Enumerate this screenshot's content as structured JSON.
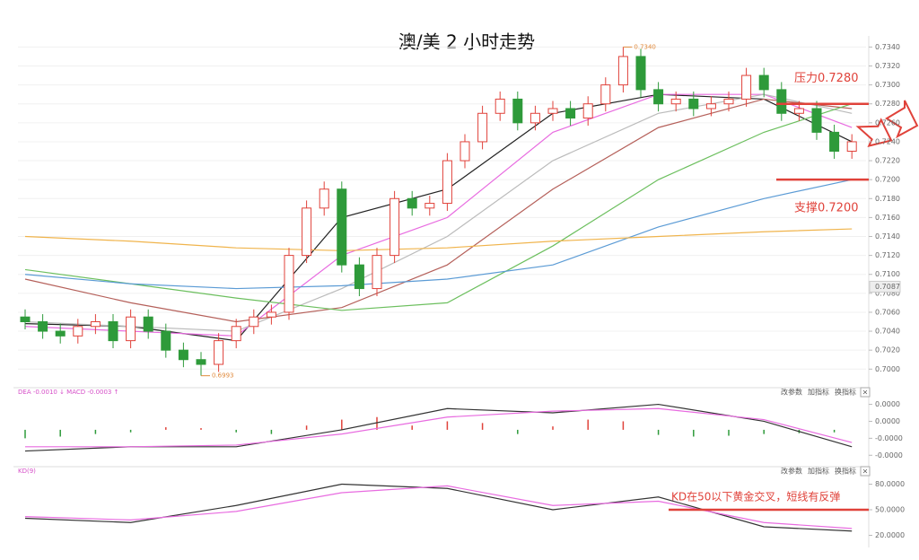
{
  "chart_data": [
    {
      "type": "candlestick",
      "title": "澳/美 2 小时走势",
      "up_color": "#e0423a",
      "down_color": "#2e9a3a",
      "ohlc": [
        [
          0.7055,
          0.7063,
          0.7042,
          0.705
        ],
        [
          0.705,
          0.7058,
          0.7032,
          0.704
        ],
        [
          0.704,
          0.7048,
          0.7027,
          0.7035
        ],
        [
          0.7035,
          0.7053,
          0.7027,
          0.7045
        ],
        [
          0.7045,
          0.7058,
          0.7037,
          0.705
        ],
        [
          0.705,
          0.7058,
          0.7022,
          0.703
        ],
        [
          0.703,
          0.7063,
          0.7022,
          0.7055
        ],
        [
          0.7055,
          0.7063,
          0.7032,
          0.704
        ],
        [
          0.704,
          0.7048,
          0.7012,
          0.702
        ],
        [
          0.702,
          0.7028,
          0.7002,
          0.701
        ],
        [
          0.701,
          0.7018,
          0.6993,
          0.7005
        ],
        [
          0.7005,
          0.7038,
          0.6997,
          0.703
        ],
        [
          0.703,
          0.7053,
          0.7022,
          0.7045
        ],
        [
          0.7045,
          0.7063,
          0.7037,
          0.7055
        ],
        [
          0.7055,
          0.7068,
          0.7047,
          0.706
        ],
        [
          0.706,
          0.7128,
          0.7052,
          0.712
        ],
        [
          0.712,
          0.7178,
          0.7112,
          0.717
        ],
        [
          0.717,
          0.7198,
          0.7162,
          0.719
        ],
        [
          0.719,
          0.7198,
          0.7102,
          0.711
        ],
        [
          0.711,
          0.7118,
          0.7077,
          0.7085
        ],
        [
          0.7085,
          0.7128,
          0.7077,
          0.712
        ],
        [
          0.712,
          0.7188,
          0.7112,
          0.718
        ],
        [
          0.718,
          0.7188,
          0.7162,
          0.717
        ],
        [
          0.717,
          0.7183,
          0.7162,
          0.7175
        ],
        [
          0.7175,
          0.7228,
          0.7167,
          0.722
        ],
        [
          0.722,
          0.7248,
          0.7212,
          0.724
        ],
        [
          0.724,
          0.7278,
          0.7232,
          0.727
        ],
        [
          0.727,
          0.7293,
          0.7262,
          0.7285
        ],
        [
          0.7285,
          0.7293,
          0.7252,
          0.726
        ],
        [
          0.726,
          0.7278,
          0.7252,
          0.727
        ],
        [
          0.727,
          0.7283,
          0.7262,
          0.7275
        ],
        [
          0.7275,
          0.7283,
          0.7257,
          0.7265
        ],
        [
          0.7265,
          0.7288,
          0.7257,
          0.728
        ],
        [
          0.728,
          0.7308,
          0.7272,
          0.73
        ],
        [
          0.73,
          0.734,
          0.7292,
          0.733
        ],
        [
          0.733,
          0.7338,
          0.7287,
          0.7295
        ],
        [
          0.7295,
          0.7303,
          0.7272,
          0.728
        ],
        [
          0.728,
          0.7293,
          0.7272,
          0.7285
        ],
        [
          0.7285,
          0.7293,
          0.7267,
          0.7275
        ],
        [
          0.7275,
          0.7288,
          0.7267,
          0.728
        ],
        [
          0.728,
          0.7293,
          0.7272,
          0.7285
        ],
        [
          0.7285,
          0.7318,
          0.7277,
          0.731
        ],
        [
          0.731,
          0.7318,
          0.7287,
          0.7295
        ],
        [
          0.7295,
          0.7303,
          0.7262,
          0.727
        ],
        [
          0.727,
          0.7283,
          0.7262,
          0.7275
        ],
        [
          0.7275,
          0.7283,
          0.7242,
          0.725
        ],
        [
          0.725,
          0.7258,
          0.7222,
          0.723
        ],
        [
          0.723,
          0.7248,
          0.7222,
          0.724
        ]
      ],
      "x": [
        0,
        6,
        12,
        18,
        24,
        30,
        36,
        42,
        47
      ],
      "series": [
        {
          "color": "#222222",
          "values": [
            0.7048,
            0.7045,
            0.703,
            0.716,
            0.719,
            0.727,
            0.729,
            0.7285,
            0.724
          ]
        },
        {
          "color": "#e86be0",
          "values": [
            0.7045,
            0.704,
            0.7035,
            0.712,
            0.716,
            0.725,
            0.729,
            0.729,
            0.7255
          ]
        },
        {
          "color": "#bbbbbb",
          "values": [
            0.705,
            0.7045,
            0.704,
            0.7085,
            0.714,
            0.722,
            0.727,
            0.729,
            0.727
          ]
        },
        {
          "color": "#b5605a",
          "values": [
            0.7095,
            0.707,
            0.705,
            0.7065,
            0.711,
            0.719,
            0.7255,
            0.7285,
            0.7275
          ]
        },
        {
          "color": "#6cbf5e",
          "values": [
            0.7105,
            0.709,
            0.7075,
            0.7062,
            0.707,
            0.713,
            0.72,
            0.725,
            0.728
          ]
        },
        {
          "color": "#5b9bd5",
          "values": [
            0.71,
            0.709,
            0.7085,
            0.7088,
            0.7095,
            0.711,
            0.715,
            0.718,
            0.72
          ]
        },
        {
          "color": "#f0b44c",
          "values": [
            0.714,
            0.7135,
            0.7128,
            0.7125,
            0.7128,
            0.7135,
            0.714,
            0.7145,
            0.7148
          ]
        }
      ],
      "extremes": [
        {
          "value": 0.734,
          "label": "0.7340"
        },
        {
          "value": 0.6993,
          "label": "0.6993"
        }
      ],
      "levels": [
        {
          "value": 0.728,
          "label": "压力0.7280"
        },
        {
          "value": 0.72,
          "label": "支撑0.7200"
        }
      ],
      "price_marker": 0.7087,
      "ylim": [
        0.6987,
        0.7347
      ],
      "yticks": [
        {
          "value": 0.7,
          "label": "0.7000"
        },
        {
          "value": 0.702,
          "label": "0.7020"
        },
        {
          "value": 0.704,
          "label": "0.7040"
        },
        {
          "value": 0.706,
          "label": "0.7060"
        },
        {
          "value": 0.708,
          "label": "0.7080"
        },
        {
          "value": 0.71,
          "label": "0.7100"
        },
        {
          "value": 0.712,
          "label": "0.7120"
        },
        {
          "value": 0.714,
          "label": "0.7140"
        },
        {
          "value": 0.716,
          "label": "0.7160"
        },
        {
          "value": 0.718,
          "label": "0.7180"
        },
        {
          "value": 0.72,
          "label": "0.7200"
        },
        {
          "value": 0.722,
          "label": "0.7220"
        },
        {
          "value": 0.724,
          "label": "0.7240"
        },
        {
          "value": 0.726,
          "label": "0.7260"
        },
        {
          "value": 0.728,
          "label": "0.7280"
        },
        {
          "value": 0.73,
          "label": "0.7300"
        },
        {
          "value": 0.732,
          "label": "0.7320"
        },
        {
          "value": 0.734,
          "label": "0.7340"
        }
      ],
      "grid": true
    },
    {
      "type": "macd",
      "header": "DEA -0.0010 ↓ MACD -0.0003 ↑",
      "toolbar": [
        "改参数",
        "加指标",
        "换指标",
        "×"
      ],
      "hist_x": [
        0,
        2,
        4,
        6,
        8,
        10,
        12,
        14,
        16,
        18,
        20,
        22,
        24,
        26,
        28,
        30,
        32,
        34,
        36,
        38,
        40,
        42,
        44,
        46
      ],
      "histogram": [
        -1e-05,
        -8e-06,
        -5e-06,
        -3e-06,
        3e-06,
        2e-06,
        -3e-06,
        -5e-06,
        5e-06,
        1.2e-05,
        1.5e-05,
        5e-06,
        1e-05,
        8e-06,
        -5e-06,
        4e-06,
        1.2e-05,
        1e-05,
        -6e-06,
        -8e-06,
        -7e-06,
        -5e-06,
        -4e-06,
        -3e-06
      ],
      "x": [
        0,
        6,
        12,
        18,
        24,
        30,
        36,
        42,
        47
      ],
      "series": [
        {
          "color": "#333333",
          "values": [
            -2.5e-05,
            -2e-05,
            -2e-05,
            0,
            2.5e-05,
            2e-05,
            3e-05,
            1e-05,
            -2e-05
          ]
        },
        {
          "color": "#e86be0",
          "values": [
            -2e-05,
            -2e-05,
            -1.8e-05,
            -5e-06,
            1.5e-05,
            2.2e-05,
            2.5e-05,
            1.2e-05,
            -1.5e-05
          ]
        }
      ],
      "ylim": [
        -3.5e-05,
        3.8e-05
      ],
      "yticks": [
        {
          "value": 3e-05,
          "label": "0.0000"
        },
        {
          "value": 1e-05,
          "label": "0.0000"
        },
        {
          "value": -1e-05,
          "label": "-0.0000"
        },
        {
          "value": -3e-05,
          "label": "-0.0000"
        }
      ]
    },
    {
      "type": "line",
      "header": "KD(9)",
      "toolbar": [
        "改参数",
        "加指标",
        "换指标",
        "×"
      ],
      "x": [
        0,
        6,
        12,
        18,
        24,
        30,
        36,
        42,
        47
      ],
      "series": [
        {
          "color": "#333333",
          "values": [
            40,
            35,
            55,
            80,
            75,
            50,
            65,
            30,
            25
          ]
        },
        {
          "color": "#e86be0",
          "values": [
            42,
            38,
            48,
            70,
            78,
            55,
            60,
            35,
            28
          ]
        }
      ],
      "level": {
        "value": 50,
        "label": "KD在50以下黄金交叉，短线有反弹"
      },
      "ylim": [
        10,
        90
      ],
      "yticks": [
        {
          "value": 80,
          "label": "80.0000"
        },
        {
          "value": 50,
          "label": "50.0000"
        },
        {
          "value": 20,
          "label": "20.0000"
        }
      ]
    }
  ]
}
